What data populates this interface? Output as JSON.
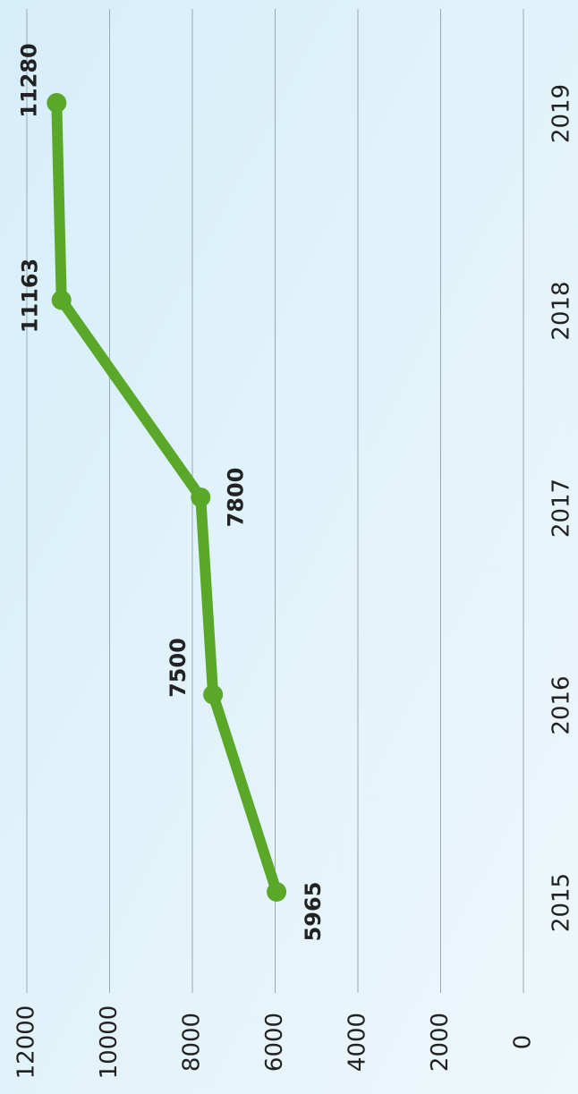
{
  "chart_data": {
    "type": "line",
    "categories": [
      "2015",
      "2016",
      "2017",
      "2018",
      "2019"
    ],
    "series": [
      {
        "name": null,
        "color": "#5aa82a",
        "values": [
          5965,
          7500,
          7800,
          11163,
          11280
        ]
      }
    ],
    "ylim": [
      0,
      12000
    ],
    "yticks": [
      0,
      2000,
      4000,
      6000,
      8000,
      10000,
      12000
    ],
    "grid": true
  }
}
